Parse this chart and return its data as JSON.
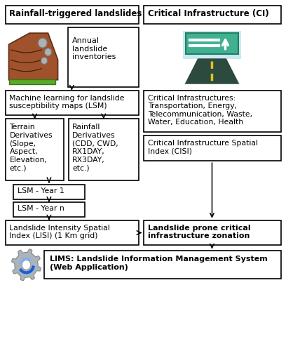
{
  "background_color": "#ffffff",
  "header_left": "Rainfall-triggered landslides",
  "header_right": "Critical Infrastructure (CI)",
  "box_annual": "Annual\nlandslide\ninventories",
  "box_ml": "Machine learning for landslide\nsusceptibility maps (LSM)",
  "box_terrain": "Terrain\nDerivatives\n(Slope,\nAspect,\nElevation,\netc.)",
  "box_rainfall": "Rainfall\nDerivatives\n(CDD, CWD,\nRX1DAY,\nRX3DAY,\netc.)",
  "box_ci": "Critical Infrastructures:\nTransportation, Energy,\nTelecommunication, Waste,\nWater, Education, Health",
  "box_cisi": "Critical Infrastructure Spatial\nIndex (CISI)",
  "box_lsm1": "LSM - Year 1",
  "box_lsmn": "LSM - Year n",
  "box_lisi": "Landslide Intensity Spatial\nIndex (LISI) (1 Km grid)",
  "box_zonation": "Landslide prone critical\ninfrastructure zonation",
  "box_lims": "LIMS: Landslide Information Management System\n(Web Application)",
  "lw": 1.2
}
